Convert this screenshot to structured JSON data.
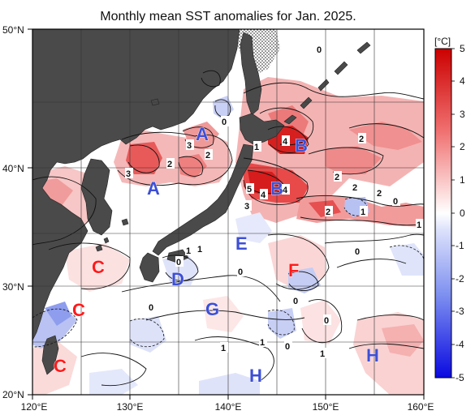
{
  "title": "Monthly mean SST anomalies for Jan. 2025.",
  "axes": {
    "lat_labels": [
      "50°N",
      "40°N",
      "30°N",
      "20°N"
    ],
    "lon_labels": [
      "120°E",
      "130°E",
      "140°E",
      "150°E",
      "160°E"
    ]
  },
  "colorbar": {
    "unit": "[°C]",
    "ticks": [
      "5",
      "4",
      "3",
      "2",
      "1",
      "0",
      "-1",
      "-2",
      "-3",
      "-4",
      "-5"
    ]
  },
  "contour_labels": [
    "0",
    "0",
    "4",
    "2",
    "3",
    "2",
    "3",
    "1",
    "4",
    "2",
    "2",
    "5",
    "4",
    "2",
    "3",
    "2",
    "2",
    "1",
    "0",
    "1",
    "0",
    "1",
    "0",
    "0",
    "0",
    "0",
    "0",
    "1",
    "0",
    "1",
    "1",
    "1"
  ],
  "region_labels": [
    {
      "text": "A",
      "color": "blue"
    },
    {
      "text": "A",
      "color": "blue"
    },
    {
      "text": "B",
      "color": "blue"
    },
    {
      "text": "B",
      "color": "blue"
    },
    {
      "text": "C",
      "color": "red"
    },
    {
      "text": "C",
      "color": "red"
    },
    {
      "text": "C",
      "color": "red"
    },
    {
      "text": "D",
      "color": "blue"
    },
    {
      "text": "E",
      "color": "blue"
    },
    {
      "text": "F",
      "color": "red"
    },
    {
      "text": "G",
      "color": "blue"
    },
    {
      "text": "H",
      "color": "blue"
    },
    {
      "text": "H",
      "color": "blue"
    }
  ],
  "colors": {
    "land": "#4a4a4a",
    "warm": "#e8292b",
    "cool": "#3b5bd9",
    "region_red": "#ff1a1a",
    "region_blue": "#3d4fd6"
  }
}
